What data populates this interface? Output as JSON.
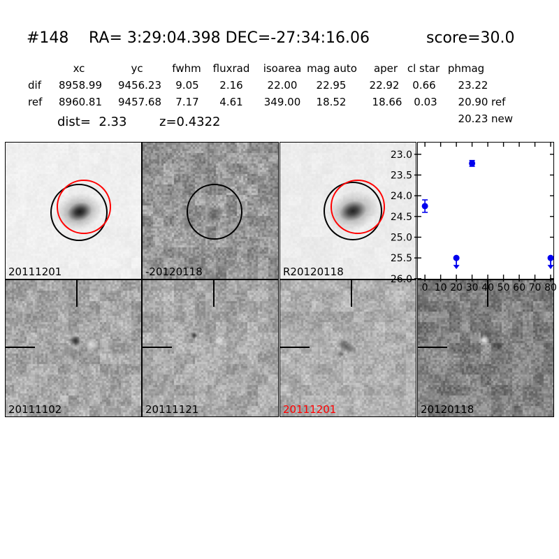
{
  "header": {
    "id": "#148",
    "coords": "RA= 3:29:04.398 DEC=-27:34:16.06",
    "score": "score=30.0"
  },
  "table": {
    "headers": [
      "xc",
      "yc",
      "fwhm",
      "fluxrad",
      "isoarea",
      "mag auto",
      "aper",
      "cl star",
      "phmag"
    ],
    "rows": [
      {
        "label": "dif",
        "cells": [
          "8958.99",
          "9456.23",
          "9.05",
          "2.16",
          "22.00",
          "22.95",
          "22.92",
          "0.66"
        ],
        "phmag": "23.22",
        "phmag_suffix": ""
      },
      {
        "label": "ref",
        "cells": [
          "8960.81",
          "9457.68",
          "7.17",
          "4.61",
          "349.00",
          "18.52",
          "18.66",
          "0.03"
        ],
        "phmag": "20.90",
        "phmag_suffix": "ref"
      }
    ],
    "extra_phmag": {
      "value": "20.23",
      "suffix": "new"
    },
    "dist_text": "dist=  2.33",
    "z_text": "z=0.4322"
  },
  "cutouts": {
    "top": [
      {
        "label": "20111201",
        "label_color": "#000000"
      },
      {
        "label": "-20120118",
        "label_color": "#000000"
      },
      {
        "label": "R20120118",
        "label_color": "#000000"
      }
    ],
    "bottom": [
      {
        "label": "20111102",
        "label_color": "#000000"
      },
      {
        "label": "20111121",
        "label_color": "#000000"
      },
      {
        "label": "20111201",
        "label_color": "#ff0000"
      },
      {
        "label": "20120118",
        "label_color": "#000000"
      }
    ],
    "aperture_colors": {
      "detection": "#000000",
      "reference": "#ff0000"
    }
  },
  "chart_data": {
    "type": "scatter",
    "title": "",
    "xlabel": "",
    "ylabel": "",
    "x_ticks": [
      0,
      10,
      20,
      30,
      40,
      50,
      60,
      70,
      80
    ],
    "y_ticks": [
      23.0,
      23.5,
      24.0,
      24.5,
      25.0,
      25.5,
      26.0
    ],
    "xlim": [
      -4.95,
      82.2
    ],
    "ylim": [
      26.02,
      22.7
    ],
    "y_axis_inverted": true,
    "grid": false,
    "legend": null,
    "marker_color": "#0000ee",
    "points": [
      {
        "x": 0,
        "y": 24.25,
        "yerr": 0.15,
        "upper_limit": false
      },
      {
        "x": 20,
        "y": 25.5,
        "yerr": 0,
        "upper_limit": true
      },
      {
        "x": 30,
        "y": 23.22,
        "yerr": 0.07,
        "upper_limit": false
      },
      {
        "x": 80,
        "y": 25.5,
        "yerr": 0,
        "upper_limit": true
      }
    ]
  }
}
